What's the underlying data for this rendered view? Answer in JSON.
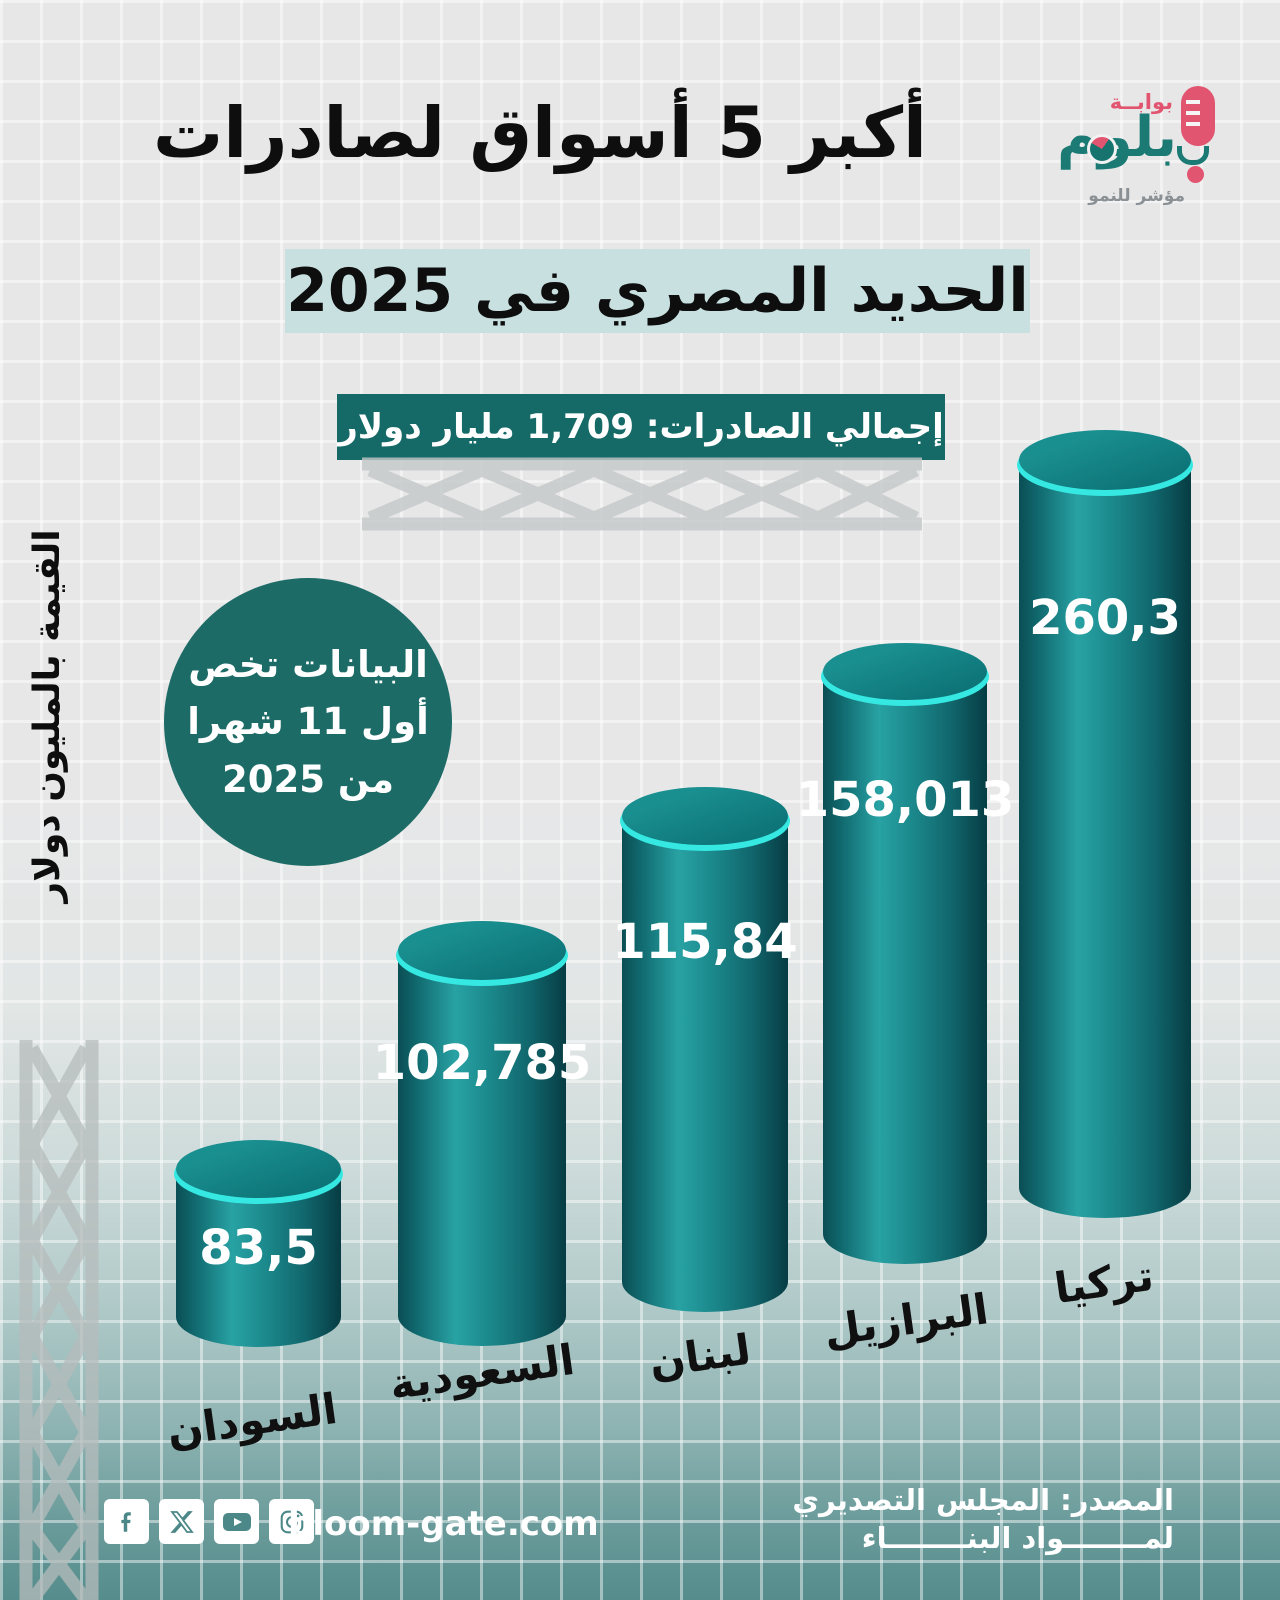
{
  "header": {
    "title_line1": "أكبر 5 أسواق لصادرات",
    "title_line2": "الحديد المصري في 2025"
  },
  "logo": {
    "top_word": "بوابــة",
    "name": "بلوم",
    "tagline": "مؤشر للنمو",
    "brand_pink": "#e25570",
    "brand_teal": "#1b7a73"
  },
  "total_box": {
    "text": "إجمالي الصادرات: 1,709 مليار دولار"
  },
  "note_circle": {
    "line1": "البيانات تخص",
    "line2": "أول 11 شهرا",
    "line3": "من 2025"
  },
  "y_axis_label": "القيمة بالمليون دولار",
  "chart_data": {
    "type": "bar",
    "title": "أكبر 5 أسواق لصادرات الحديد المصري في 2025",
    "categories": [
      "السودان",
      "السعودية",
      "لبنان",
      "البرازيل",
      "تركيا"
    ],
    "values": [
      83.5,
      102.785,
      115.84,
      158.013,
      260.3
    ],
    "value_labels": [
      "83,5",
      "102,785",
      "115,84",
      "158,013",
      "260,3"
    ],
    "unit": "مليون دولار",
    "ylabel": "القيمة بالمليون دولار",
    "total_note": "إجمالي الصادرات: 1,709 مليار دولار",
    "period_note": "البيانات تخص أول 11 شهرا من 2025",
    "bar_color": "#137277",
    "legend": "none",
    "grid": "subtle background squares"
  },
  "footer": {
    "website": "bloom-gate.com",
    "source_line1": "المصدر: المجلس التصديري",
    "source_line2": "لمــــــــواد البنــــــــاء",
    "social_icons": [
      "facebook-icon",
      "x-icon",
      "youtube-icon",
      "instagram-icon"
    ]
  }
}
